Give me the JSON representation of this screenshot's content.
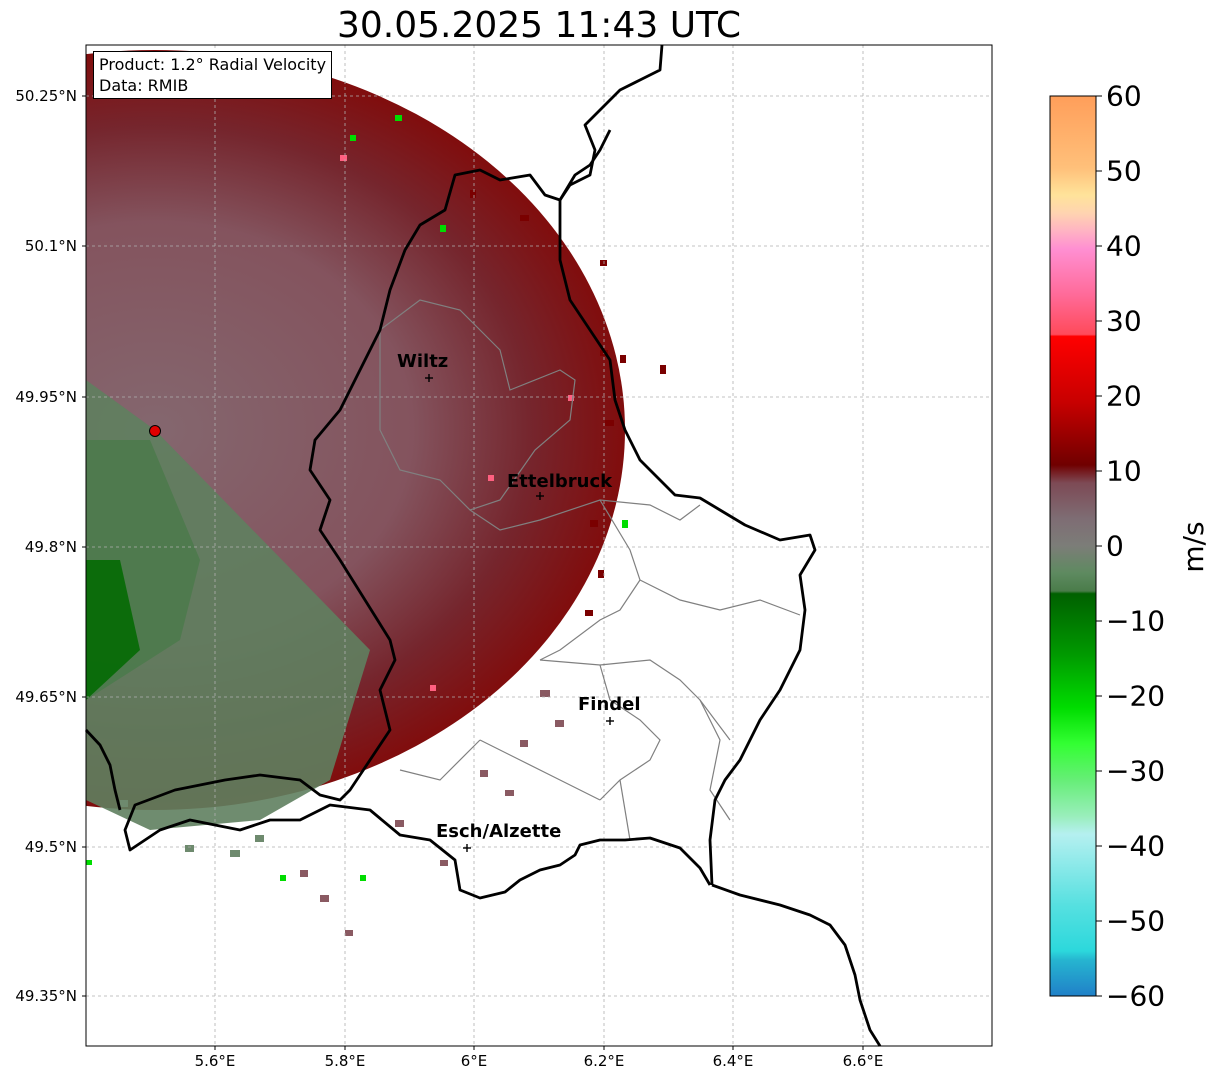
{
  "title": "30.05.2025 11:43 UTC",
  "info": {
    "product": "Product: 1.2° Radial Velocity",
    "data": "Data: RMIB"
  },
  "lat_labels": [
    "50.25°N",
    "50.1°N",
    "49.95°N",
    "49.8°N",
    "49.65°N",
    "49.5°N",
    "49.35°N"
  ],
  "lon_labels": [
    "5.6°E",
    "5.8°E",
    "6°E",
    "6.2°E",
    "6.4°E",
    "6.6°E"
  ],
  "cities": [
    {
      "name": "Wiltz"
    },
    {
      "name": "Ettelbruck"
    },
    {
      "name": "Findel"
    },
    {
      "name": "Esch/Alzette"
    }
  ],
  "colorbar": {
    "unit": "m/s",
    "ticks": [
      "60",
      "50",
      "40",
      "30",
      "20",
      "10",
      "0",
      "−10",
      "−20",
      "−30",
      "−40",
      "−50",
      "−60"
    ],
    "range": [
      -60,
      60
    ]
  },
  "colors": {
    "approaching_dark": "#006400",
    "approaching_bright": "#00e000",
    "near_zero": "#7a6e72",
    "receding": "#7a0000",
    "radar_site": "#e00000"
  }
}
